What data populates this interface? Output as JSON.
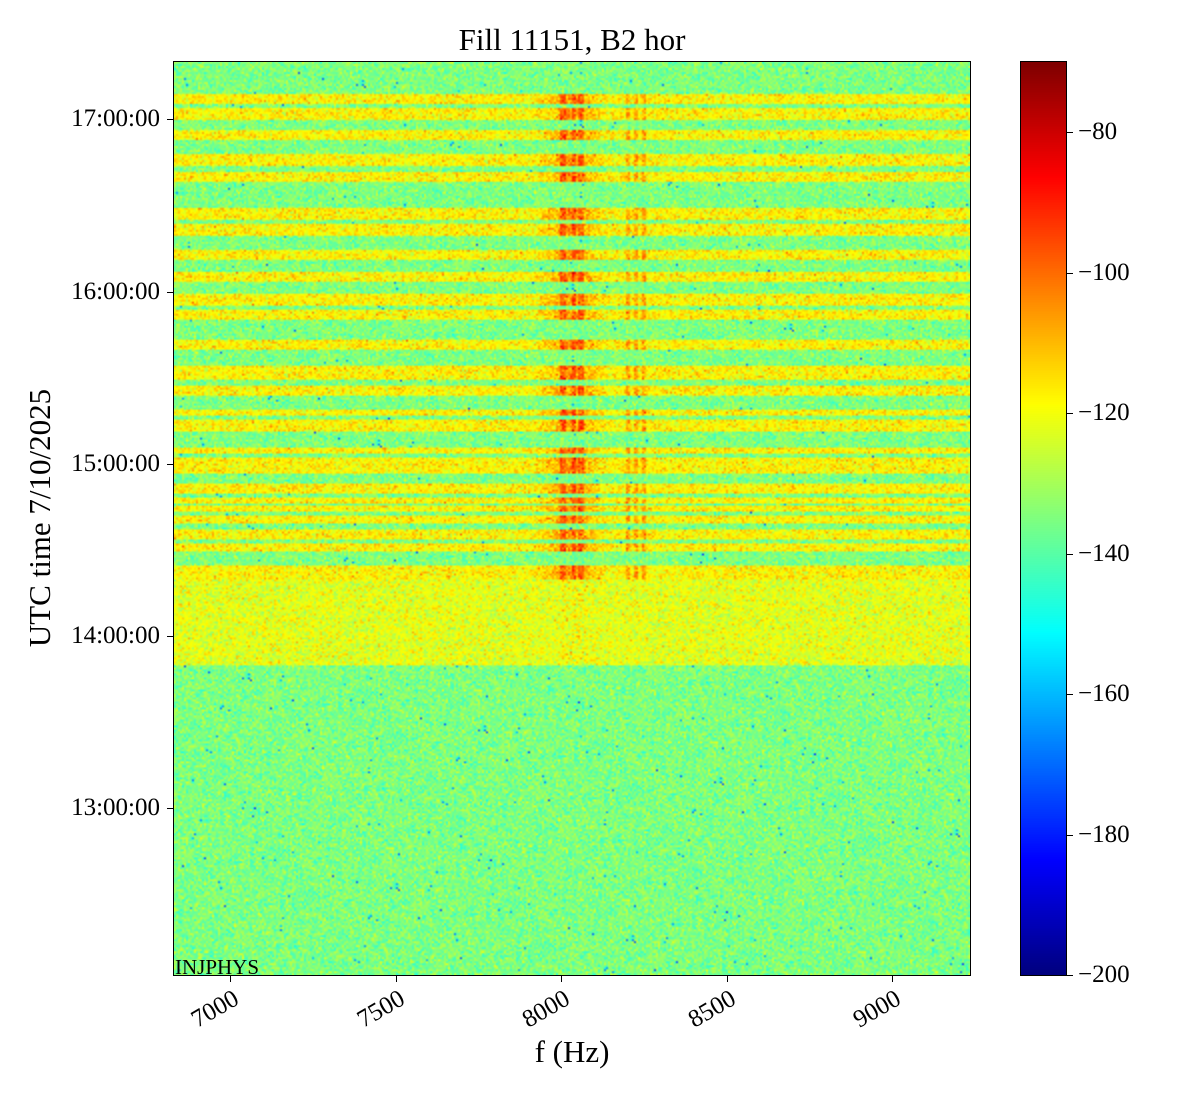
{
  "chart_data": {
    "type": "heatmap",
    "title": "Fill 11151, B2 hor",
    "xlabel": "f (Hz)",
    "ylabel": "UTC time 7/10/2025",
    "xlim": [
      6830,
      9235
    ],
    "ylim": [
      "12:02:00",
      "17:20:00"
    ],
    "x_ticks": [
      7000,
      7500,
      8000,
      8500,
      9000
    ],
    "y_ticks": [
      "13:00:00",
      "14:00:00",
      "15:00:00",
      "16:00:00",
      "17:00:00"
    ],
    "colorbar": {
      "colormap": "jet",
      "range": [
        -200,
        -70
      ],
      "ticks": [
        -80,
        -100,
        -120,
        -140,
        -160,
        -180,
        -200
      ]
    },
    "background_level": -135,
    "excitation_start": "13:50:00",
    "excitation_pre_level": -122,
    "excitation_bands": [
      [
        "14:19:30",
        "14:24:30"
      ],
      [
        "14:29:30",
        "14:32:30"
      ],
      [
        "14:33:30",
        "14:37:00"
      ],
      [
        "14:39:00",
        "14:42:00"
      ],
      [
        "14:43:30",
        "14:45:30"
      ],
      [
        "14:46:30",
        "14:48:30"
      ],
      [
        "14:49:30",
        "14:53:00"
      ],
      [
        "14:57:00",
        "15:02:30"
      ],
      [
        "15:03:30",
        "15:06:00"
      ],
      [
        "15:11:30",
        "15:15:30"
      ],
      [
        "15:16:30",
        "15:19:00"
      ],
      [
        "15:23:30",
        "15:27:30"
      ],
      [
        "15:29:30",
        "15:34:00"
      ],
      [
        "15:39:30",
        "15:43:30"
      ],
      [
        "15:50:00",
        "15:54:00"
      ],
      [
        "15:55:00",
        "15:59:00"
      ],
      [
        "16:03:30",
        "16:07:00"
      ],
      [
        "16:11:00",
        "16:14:30"
      ],
      [
        "16:19:30",
        "16:23:30"
      ],
      [
        "16:25:00",
        "16:29:30"
      ],
      [
        "16:38:00",
        "16:42:00"
      ],
      [
        "16:44:00",
        "16:48:00"
      ],
      [
        "16:53:00",
        "16:56:30"
      ],
      [
        "16:59:30",
        "17:04:00"
      ],
      [
        "17:05:30",
        "17:09:00"
      ]
    ],
    "excitation_level": -118,
    "hot_lines_hz": [
      8005,
      8040,
      8060,
      8200,
      8225,
      8250
    ],
    "watermark": "INJPHYS"
  }
}
